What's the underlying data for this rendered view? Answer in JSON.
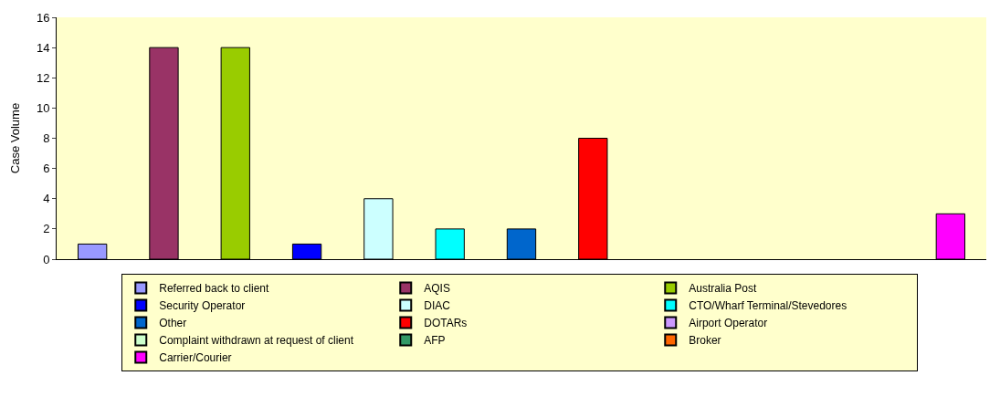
{
  "chart_data": {
    "type": "bar",
    "ylabel": "Case Volume",
    "categories": [
      null,
      null,
      null,
      null,
      null,
      null,
      null,
      null,
      null,
      null,
      null,
      null,
      null
    ],
    "ylim": [
      0,
      16
    ],
    "yticks": [
      0,
      2,
      4,
      6,
      8,
      10,
      12,
      14,
      16
    ],
    "grid": false,
    "legend": "bottom",
    "series": [
      {
        "name": "Referred back to client",
        "color": "#9999ff",
        "values": [
          1,
          null,
          null,
          null,
          null,
          null,
          null,
          null,
          null,
          null,
          null,
          null,
          null
        ]
      },
      {
        "name": "AQIS",
        "color": "#993366",
        "values": [
          null,
          14,
          null,
          null,
          null,
          null,
          null,
          null,
          null,
          null,
          null,
          null,
          null
        ]
      },
      {
        "name": "Australia Post",
        "color": "#99cc00",
        "values": [
          null,
          null,
          14,
          null,
          null,
          null,
          null,
          null,
          null,
          null,
          null,
          null,
          null
        ]
      },
      {
        "name": "Security Operator",
        "color": "#0000ff",
        "values": [
          null,
          null,
          null,
          1,
          null,
          null,
          null,
          null,
          null,
          null,
          null,
          null,
          null
        ]
      },
      {
        "name": "DIAC",
        "color": "#ccffff",
        "values": [
          null,
          null,
          null,
          null,
          4,
          null,
          null,
          null,
          null,
          null,
          null,
          null,
          null
        ]
      },
      {
        "name": "CTO/Wharf Terminal/Stevedores",
        "color": "#00ffff",
        "values": [
          null,
          null,
          null,
          null,
          null,
          2,
          null,
          null,
          null,
          null,
          null,
          null,
          null
        ]
      },
      {
        "name": "Other",
        "color": "#0066cc",
        "values": [
          null,
          null,
          null,
          null,
          null,
          null,
          2,
          null,
          null,
          null,
          null,
          null,
          null
        ]
      },
      {
        "name": "DOTARs",
        "color": "#ff0000",
        "values": [
          null,
          null,
          null,
          null,
          null,
          null,
          null,
          8,
          null,
          null,
          null,
          null,
          null
        ]
      },
      {
        "name": "Airport Operator",
        "color": "#cc99ff",
        "values": [
          null,
          null,
          null,
          null,
          null,
          null,
          null,
          null,
          0,
          null,
          null,
          null,
          null
        ]
      },
      {
        "name": "Complaint withdrawn at request of client",
        "color": "#ccffcc",
        "values": [
          null,
          null,
          null,
          null,
          null,
          null,
          null,
          null,
          null,
          0,
          null,
          null,
          null
        ]
      },
      {
        "name": "AFP",
        "color": "#339966",
        "values": [
          null,
          null,
          null,
          null,
          null,
          null,
          null,
          null,
          null,
          null,
          0,
          null,
          null
        ]
      },
      {
        "name": "Broker",
        "color": "#ff6600",
        "values": [
          null,
          null,
          null,
          null,
          null,
          null,
          null,
          null,
          null,
          null,
          null,
          0,
          null
        ]
      },
      {
        "name": "Carrier/Courier",
        "color": "#ff00ff",
        "values": [
          null,
          null,
          null,
          null,
          null,
          null,
          null,
          null,
          null,
          null,
          null,
          null,
          3
        ]
      }
    ]
  }
}
